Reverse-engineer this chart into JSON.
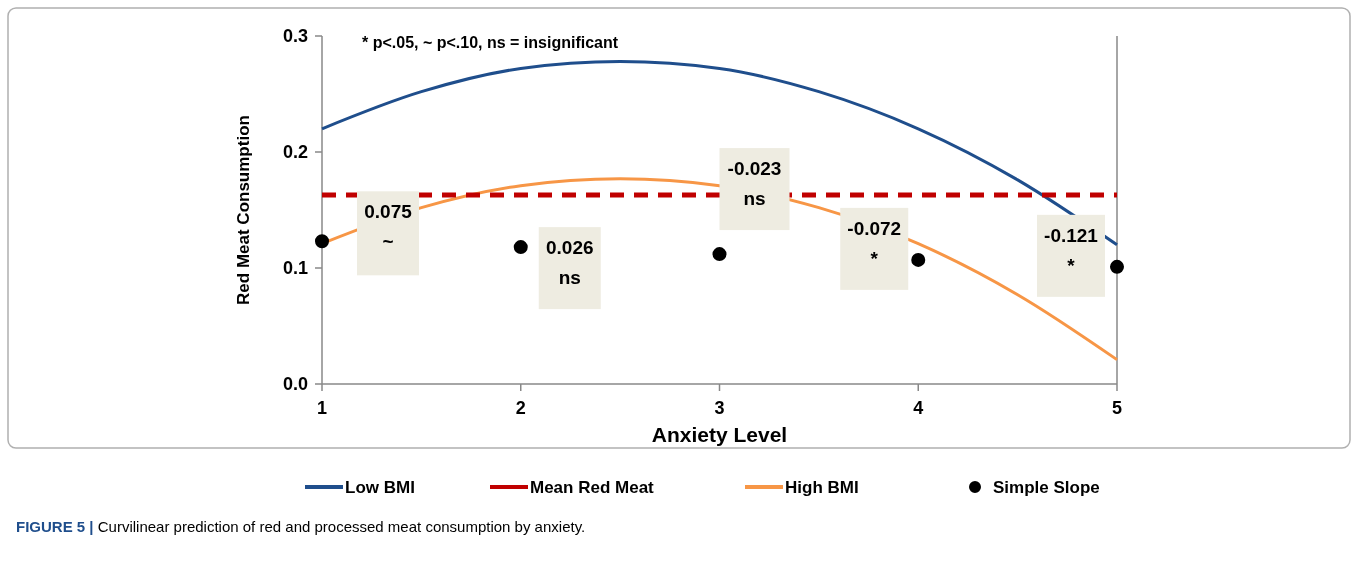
{
  "chart_data": {
    "type": "line",
    "xlabel": "Anxiety Level",
    "ylabel": "Red Meat Consumption",
    "x": [
      1,
      1.5,
      2,
      2.5,
      3,
      3.5,
      4,
      4.5,
      5
    ],
    "series": [
      {
        "name": "Low BMI",
        "color": "#1f4e8c",
        "values": [
          0.22,
          0.252,
          0.272,
          0.278,
          0.272,
          0.252,
          0.22,
          0.176,
          0.12
        ]
      },
      {
        "name": "High BMI",
        "color": "#f79646",
        "values": [
          0.121,
          0.152,
          0.171,
          0.177,
          0.171,
          0.152,
          0.121,
          0.077,
          0.021
        ]
      },
      {
        "name": "Simple Slope",
        "type": "scatter",
        "color": "#000000",
        "marker": "circle",
        "x": [
          1,
          2,
          3,
          4,
          5
        ],
        "values": [
          0.123,
          0.118,
          0.112,
          0.107,
          0.101
        ]
      }
    ],
    "ref_lines": [
      {
        "axis": "y",
        "value": 0.163,
        "label": "Mean Red Meat",
        "color": "#c00000",
        "line_style": "dashed"
      }
    ],
    "xlim": [
      1,
      5
    ],
    "xticks": [
      1,
      2,
      3,
      4,
      5
    ],
    "ylim": [
      0,
      0.3
    ],
    "yticks": [
      {
        "value": 0,
        "label": "0.0"
      },
      0.1,
      0.2,
      0.3
    ],
    "grid": false,
    "legend": "bottom",
    "marker": "none",
    "line_style": "solid",
    "annotations": [
      {
        "text": "0.075\n~",
        "x": 1,
        "y": 0.123
      },
      {
        "text": "0.026\nns",
        "x": 2,
        "y": 0.118
      },
      {
        "text": "-0.023\nns",
        "x": 3,
        "y": 0.112
      },
      {
        "text": "-0.072\n*",
        "x": 4,
        "y": 0.107
      },
      {
        "text": "-0.121\n*",
        "x": 5,
        "y": 0.101
      },
      "* p<.05, ~ p<.10, ns = insignificant",
      "FIGURE 5 | Curvilinear prediction of red and processed meat consumption by anxiety."
    ]
  }
}
